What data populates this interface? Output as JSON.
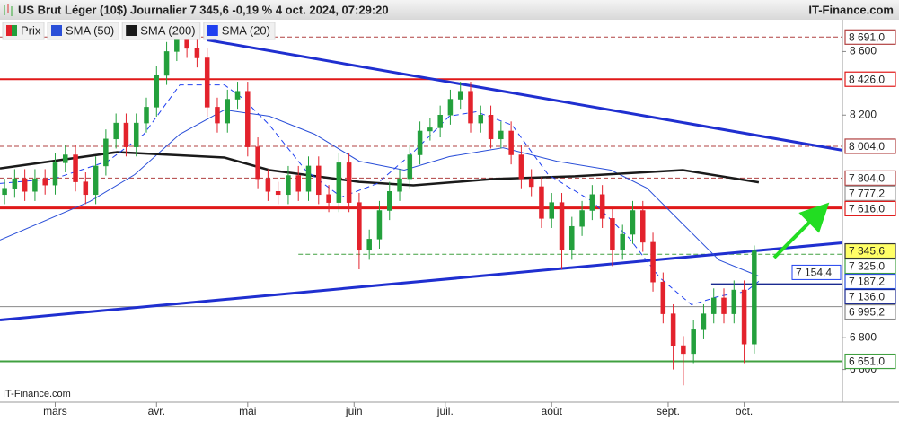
{
  "chart_data": {
    "type": "candlestick",
    "title": "US Brut Léger (10$) Journalier 7 345,6 -0,19 % 4 oct. 2024, 07:29:20",
    "brand": "IT-Finance.com",
    "watermark": "IT-Finance.com",
    "xlim": [
      -0.9,
      165.4
    ],
    "ylim": [
      6400,
      8800
    ],
    "yticks": [
      {
        "value": 6600,
        "label": "6 600"
      },
      {
        "value": 6800,
        "label": "6 800"
      },
      {
        "value": 8200,
        "label": "8 200"
      },
      {
        "value": 8600,
        "label": "8 600"
      }
    ],
    "xticks": [
      {
        "value": 10,
        "label": "mars"
      },
      {
        "value": 30,
        "label": "avr."
      },
      {
        "value": 48,
        "label": "mai"
      },
      {
        "value": 69,
        "label": "juin"
      },
      {
        "value": 87,
        "label": "juil."
      },
      {
        "value": 108,
        "label": "août"
      },
      {
        "value": 131,
        "label": "sept."
      },
      {
        "value": 146,
        "label": "oct."
      }
    ],
    "candles": {
      "name": "Prix",
      "up_color": "#23a03c",
      "down_color": "#e3222c",
      "last_label": "7 345,6",
      "x": [
        0,
        2,
        4,
        6,
        8,
        10,
        12,
        14,
        16,
        18,
        20,
        22,
        24,
        26,
        28,
        30,
        32,
        34,
        36,
        38,
        40,
        42,
        44,
        46,
        48,
        50,
        52,
        54,
        56,
        58,
        60,
        62,
        64,
        66,
        68,
        70,
        72,
        74,
        76,
        78,
        80,
        82,
        84,
        86,
        88,
        90,
        92,
        94,
        96,
        98,
        100,
        102,
        104,
        106,
        108,
        110,
        112,
        114,
        116,
        118,
        120,
        122,
        124,
        126,
        128,
        130,
        132,
        134,
        136,
        138,
        140,
        142,
        144,
        146,
        148
      ],
      "open": [
        7700,
        7740,
        7800,
        7720,
        7800,
        7760,
        7900,
        7950,
        7780,
        7700,
        7880,
        8050,
        8150,
        8000,
        8150,
        8250,
        8450,
        8600,
        8680,
        8620,
        8560,
        8250,
        8150,
        8300,
        8350,
        8000,
        7800,
        7720,
        7700,
        7820,
        7720,
        7880,
        7700,
        7650,
        7900,
        7650,
        7350,
        7420,
        7600,
        7720,
        7800,
        7950,
        8100,
        8120,
        8200,
        8300,
        8350,
        8150,
        8200,
        8050,
        8100,
        7950,
        7800,
        7750,
        7550,
        7650,
        7350,
        7500,
        7600,
        7700,
        7550,
        7350,
        7450,
        7600,
        7400,
        7150,
        6950,
        6750,
        6700,
        6850,
        6950,
        7050,
        6950,
        7100,
        6760
      ],
      "high": [
        7800,
        7860,
        7860,
        7860,
        7860,
        7960,
        8010,
        8010,
        7840,
        7940,
        8110,
        8210,
        8210,
        8210,
        8310,
        8510,
        8660,
        8740,
        8740,
        8680,
        8620,
        8310,
        8360,
        8410,
        8410,
        8060,
        7860,
        7780,
        7880,
        7880,
        7940,
        7940,
        7760,
        7960,
        7960,
        7710,
        7480,
        7660,
        7780,
        7860,
        8010,
        8160,
        8180,
        8260,
        8360,
        8410,
        8410,
        8260,
        8260,
        8160,
        8160,
        8010,
        7860,
        7810,
        7710,
        7710,
        7560,
        7660,
        7760,
        7760,
        7610,
        7510,
        7660,
        7660,
        7460,
        7210,
        7010,
        6810,
        6910,
        7010,
        7110,
        7110,
        7160,
        7160,
        7380
      ],
      "low": [
        7640,
        7680,
        7660,
        7660,
        7700,
        7700,
        7840,
        7720,
        7640,
        7640,
        7820,
        7990,
        7940,
        7940,
        8090,
        8190,
        8390,
        8540,
        8560,
        8500,
        8190,
        8090,
        8090,
        8240,
        7940,
        7740,
        7660,
        7640,
        7640,
        7660,
        7660,
        7640,
        7590,
        7590,
        7590,
        7230,
        7290,
        7360,
        7540,
        7660,
        7740,
        7890,
        8040,
        8060,
        8140,
        8240,
        8090,
        8090,
        7990,
        7990,
        7890,
        7740,
        7690,
        7490,
        7490,
        7230,
        7290,
        7440,
        7540,
        7490,
        7250,
        7290,
        7390,
        7340,
        7090,
        6890,
        6600,
        6500,
        6640,
        6790,
        6890,
        6890,
        6890,
        6640,
        6700
      ],
      "close": [
        7740,
        7800,
        7720,
        7800,
        7760,
        7900,
        7950,
        7780,
        7700,
        7880,
        8050,
        8150,
        8000,
        8150,
        8250,
        8450,
        8600,
        8680,
        8620,
        8560,
        8250,
        8150,
        8300,
        8350,
        8000,
        7800,
        7720,
        7700,
        7820,
        7720,
        7880,
        7700,
        7650,
        7900,
        7650,
        7350,
        7420,
        7600,
        7720,
        7800,
        7950,
        8100,
        8120,
        8200,
        8300,
        8350,
        8150,
        8200,
        8050,
        8100,
        7950,
        7800,
        7750,
        7550,
        7650,
        7350,
        7500,
        7600,
        7700,
        7550,
        7350,
        7450,
        7600,
        7400,
        7150,
        6950,
        6750,
        6700,
        6850,
        6950,
        7050,
        6950,
        7100,
        6760,
        7345.6
      ]
    },
    "series": [
      {
        "name": "SMA (50)",
        "color": "#2a4fd8",
        "style": "solid",
        "end_label": "7 187,2",
        "x": [
          -0.9,
          16.8,
          25.7,
          34.6,
          43.4,
          52.3,
          61.2,
          70,
          78.9,
          87.8,
          98.4,
          109,
          119.7,
          126.8,
          133.9,
          141,
          148.9
        ],
        "values": [
          7414,
          7656,
          7826,
          8080,
          8233,
          8193,
          8080,
          7910,
          7854,
          7939,
          7995,
          7910,
          7854,
          7741,
          7515,
          7289,
          7187.2
        ]
      },
      {
        "name": "SMA (200)",
        "color": "#1a1a1a",
        "style": "thick",
        "end_label": "7 777,2",
        "x": [
          -0.9,
          22.2,
          43.4,
          52.3,
          70,
          80.7,
          96.6,
          112.6,
          133.9,
          148.9
        ],
        "values": [
          7865,
          7967,
          7933,
          7854,
          7780,
          7758,
          7798,
          7815,
          7854,
          7777.2
        ]
      },
      {
        "name": "SMA (20)",
        "color": "#2040f0",
        "style": "dashed",
        "end_label": "7 154,4",
        "x": [
          -0.9,
          9.8,
          20.4,
          27.5,
          34.6,
          43.4,
          47,
          52.3,
          59.4,
          66.5,
          73.6,
          80.7,
          87.8,
          93.1,
          100.2,
          107.3,
          116.1,
          123.2,
          129.4,
          135.6,
          141,
          146.3,
          148.9
        ],
        "values": [
          7770,
          7800,
          7910,
          8080,
          8390,
          8390,
          8306,
          8137,
          7854,
          7684,
          7770,
          7967,
          8193,
          8221,
          8137,
          7826,
          7656,
          7430,
          7176,
          7007,
          7060,
          7090,
          7154.4
        ]
      }
    ],
    "trendlines": [
      {
        "color": "#1f2fd0",
        "x": [
          40,
          165.4
        ],
        "values": [
          8673,
          7979
        ]
      },
      {
        "color": "#1f2fd0",
        "x": [
          -0.9,
          165.4
        ],
        "values": [
          6911,
          7397
        ]
      }
    ],
    "levels": [
      {
        "value": 8691,
        "label": "8 691,0",
        "color": "#b04040",
        "style": "dashed"
      },
      {
        "value": 8426,
        "label": "8 426,0",
        "color": "#e01818",
        "style": "solid"
      },
      {
        "value": 8004,
        "label": "8 004,0",
        "color": "#b04040",
        "style": "dashed"
      },
      {
        "value": 7804,
        "label": "7 804,0",
        "color": "#b04040",
        "style": "dashed"
      },
      {
        "value": 7616,
        "label": "7 616,0",
        "color": "#e01818",
        "style": "thick"
      },
      {
        "value": 7325,
        "label": "7 325,0",
        "color": "#40a040",
        "style": "dashed",
        "from": 58
      },
      {
        "value": 7136,
        "label": "7 136,0",
        "color": "#1a2a90",
        "style": "solid",
        "from": 139.5
      },
      {
        "value": 6995.2,
        "label": "6 995,2",
        "color": "#8a8a8a",
        "style": "thin"
      },
      {
        "value": 6651,
        "label": "6 651,0",
        "color": "#40a040",
        "style": "solid"
      }
    ]
  }
}
